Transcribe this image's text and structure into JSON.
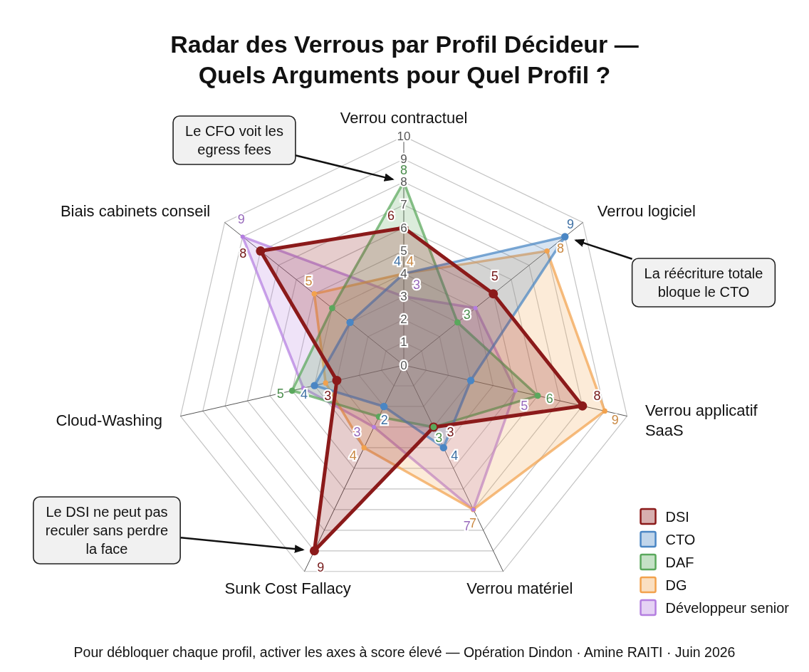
{
  "chart_data": {
    "type": "radar",
    "title": "Radar des Verrous par Profil Décideur —\nQuels Arguments pour Quel Profil ?",
    "categories": [
      "Verrou contractuel",
      "Verrou logiciel",
      "Verrou applicatif SaaS",
      "Verrou matériel",
      "Sunk Cost Fallacy",
      "Cloud-Washing",
      "Biais cabinets conseil"
    ],
    "series": [
      {
        "name": "DSI",
        "color": "#8b1a1a",
        "values": [
          6,
          5,
          8,
          3,
          9,
          3,
          8
        ],
        "value_labels": [
          "6",
          "5",
          "8",
          "3",
          "9",
          "3",
          "8"
        ]
      },
      {
        "name": "CTO",
        "color": "#4a86c4",
        "values": [
          4,
          9,
          3,
          4,
          2,
          4,
          3
        ],
        "value_labels": [
          "4",
          "9",
          null,
          "4",
          "2",
          "4",
          null
        ]
      },
      {
        "name": "DAF",
        "color": "#5aa85c",
        "values": [
          8,
          3,
          6,
          3,
          2.5,
          5,
          4
        ],
        "value_labels": [
          "8",
          "3",
          "6",
          "3",
          null,
          "5",
          null
        ]
      },
      {
        "name": "DG",
        "color": "#f2a24e",
        "values": [
          4,
          8,
          9,
          7,
          4,
          3.5,
          5
        ],
        "value_labels": [
          "4",
          "8",
          "9",
          "7",
          "4",
          null,
          "5"
        ]
      },
      {
        "name": "Développeur senior",
        "color": "#b47ee0",
        "values": [
          3,
          4,
          5,
          7,
          3,
          4.5,
          9
        ],
        "value_labels": [
          "3",
          null,
          "5",
          "7",
          "3",
          null,
          "9"
        ]
      }
    ],
    "ylim": [
      0,
      10
    ],
    "yticks": [
      0,
      1,
      2,
      3,
      4,
      5,
      6,
      7,
      8,
      9,
      10
    ],
    "grid": true,
    "legend": "bottom right",
    "marker": "circle",
    "line_style": "solid",
    "annotations": [
      {
        "text": "Le CFO voit les\negress fees",
        "x": "Verrou contractuel"
      },
      {
        "text": "La réécriture totale\nbloque le CTO",
        "x": "Verrou logiciel"
      },
      {
        "text": "Le DSI ne peut pas\nreculer sans perdre\nla face",
        "x": "Sunk Cost Fallacy"
      },
      "Pour débloquer chaque profil, activer les axes à score élevé — Opération Dindon · Amine RAITI · Juin 2026"
    ]
  }
}
